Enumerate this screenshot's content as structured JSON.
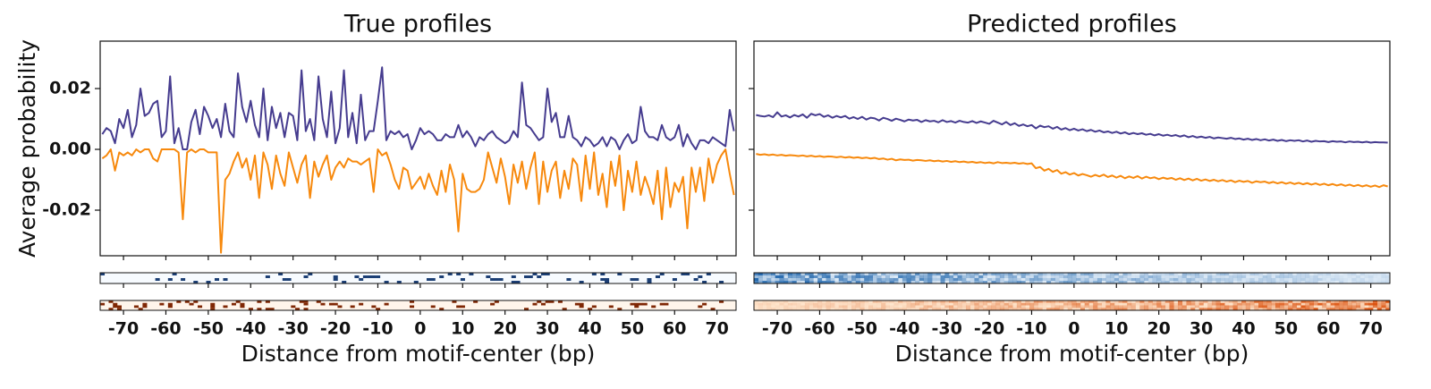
{
  "chart_data": [
    {
      "type": "line",
      "title": "True profiles",
      "ylabel": "Average probability",
      "xlabel": "Distance from motif-center (bp)",
      "xlim": [
        -75.5,
        74.5
      ],
      "xticks": [
        -70,
        -60,
        -50,
        -40,
        -30,
        -20,
        -10,
        0,
        10,
        20,
        30,
        40,
        50,
        60,
        70
      ],
      "ylim": [
        -0.035,
        0.0356
      ],
      "yticks": [
        0.02,
        {
          "value": 0,
          "label": "0.00"
        },
        -0.02
      ],
      "x": [
        -75,
        -74,
        -73,
        -72,
        -71,
        -70,
        -69,
        -68,
        -67,
        -66,
        -65,
        -64,
        -63,
        -62,
        -61,
        -60,
        -59,
        -58,
        -57,
        -56,
        -55,
        -54,
        -53,
        -52,
        -51,
        -50,
        -49,
        -48,
        -47,
        -46,
        -45,
        -44,
        -43,
        -42,
        -41,
        -40,
        -39,
        -38,
        -37,
        -36,
        -35,
        -34,
        -33,
        -32,
        -31,
        -30,
        -29,
        -28,
        -27,
        -26,
        -25,
        -24,
        -23,
        -22,
        -21,
        -20,
        -19,
        -18,
        -17,
        -16,
        -15,
        -14,
        -13,
        -12,
        -11,
        -10,
        -9,
        -8,
        -7,
        -6,
        -5,
        -4,
        -3,
        -2,
        -1,
        0,
        1,
        2,
        3,
        4,
        5,
        6,
        7,
        8,
        9,
        10,
        11,
        12,
        13,
        14,
        15,
        16,
        17,
        18,
        19,
        20,
        21,
        22,
        23,
        24,
        25,
        26,
        27,
        28,
        29,
        30,
        31,
        32,
        33,
        34,
        35,
        36,
        37,
        38,
        39,
        40,
        41,
        42,
        43,
        44,
        45,
        46,
        47,
        48,
        49,
        50,
        51,
        52,
        53,
        54,
        55,
        56,
        57,
        58,
        59,
        60,
        61,
        62,
        63,
        64,
        65,
        66,
        67,
        68,
        69,
        70,
        71,
        72,
        73,
        74
      ],
      "series": [
        {
          "color": "#463c8f",
          "values": [
            0.005,
            0.007,
            0.006,
            0.002,
            0.01,
            0.007,
            0.013,
            0.004,
            0.008,
            0.02,
            0.011,
            0.012,
            0.015,
            0.016,
            0.004,
            0.006,
            0.024,
            0.002,
            0.007,
            0.0,
            0.0,
            0.009,
            0.013,
            0.005,
            0.014,
            0.011,
            0.007,
            0.01,
            0.004,
            0.015,
            0.006,
            0.004,
            0.025,
            0.014,
            0.009,
            0.016,
            0.008,
            0.004,
            0.02,
            0.003,
            0.014,
            0.007,
            0.012,
            0.004,
            0.012,
            0.011,
            0.003,
            0.026,
            0.006,
            0.01,
            0.003,
            0.024,
            0.01,
            0.004,
            0.019,
            0.002,
            0.007,
            0.026,
            0.004,
            0.012,
            0.002,
            0.018,
            0.003,
            0.006,
            0.006,
            0.016,
            0.027,
            0.003,
            0.006,
            0.005,
            0.006,
            0.004,
            0.005,
            0.0,
            0.003,
            0.007,
            0.005,
            0.006,
            0.005,
            0.003,
            0.003,
            0.005,
            0.004,
            0.004,
            0.008,
            0.004,
            0.006,
            0.004,
            0.001,
            0.004,
            0.003,
            0.005,
            0.006,
            0.004,
            0.003,
            0.002,
            0.003,
            0.006,
            0.004,
            0.022,
            0.008,
            0.007,
            0.005,
            0.003,
            0.004,
            0.02,
            0.009,
            0.012,
            0.004,
            0.004,
            0.011,
            0.004,
            0.003,
            0.001,
            0.004,
            0.003,
            0.001,
            0.002,
            0.004,
            0.001,
            0.004,
            0.003,
            0.0,
            0.003,
            0.005,
            0.002,
            0.003,
            0.014,
            0.006,
            0.004,
            0.004,
            0.003,
            0.008,
            0.004,
            0.003,
            0.004,
            0.008,
            0.001,
            0.005,
            0.002,
            0.0,
            0.003,
            0.003,
            0.002,
            0.004,
            0.003,
            0.002,
            0.001,
            0.013,
            0.006
          ]
        },
        {
          "color": "#f7890d",
          "values": [
            -0.003,
            -0.002,
            0.0,
            -0.007,
            -0.001,
            -0.002,
            -0.001,
            -0.002,
            0.0,
            -0.001,
            0.0,
            0.0,
            -0.003,
            -0.004,
            0.0,
            0.0,
            0.0,
            0.0,
            -0.001,
            -0.023,
            -0.001,
            0.0,
            -0.001,
            0.0,
            0.0,
            -0.001,
            -0.001,
            -0.001,
            -0.034,
            -0.01,
            -0.008,
            -0.004,
            -0.001,
            -0.006,
            -0.003,
            -0.01,
            -0.002,
            -0.016,
            -0.001,
            -0.005,
            -0.013,
            -0.002,
            -0.008,
            -0.012,
            -0.001,
            -0.006,
            -0.011,
            -0.005,
            -0.002,
            -0.016,
            -0.004,
            -0.009,
            -0.005,
            -0.002,
            -0.01,
            -0.006,
            -0.004,
            -0.006,
            -0.003,
            -0.004,
            -0.004,
            -0.005,
            -0.004,
            -0.003,
            -0.014,
            0.0,
            -0.002,
            -0.001,
            -0.005,
            -0.01,
            -0.013,
            -0.006,
            -0.007,
            -0.013,
            -0.011,
            -0.009,
            -0.013,
            -0.008,
            -0.012,
            -0.015,
            -0.007,
            -0.014,
            -0.005,
            -0.01,
            -0.027,
            -0.008,
            -0.013,
            -0.014,
            -0.014,
            -0.013,
            -0.01,
            -0.001,
            -0.006,
            -0.011,
            -0.003,
            -0.009,
            -0.018,
            -0.005,
            -0.011,
            -0.004,
            -0.013,
            -0.006,
            -0.001,
            -0.018,
            -0.004,
            -0.014,
            -0.007,
            -0.004,
            -0.016,
            -0.007,
            -0.013,
            -0.003,
            -0.005,
            -0.017,
            -0.002,
            -0.013,
            -0.001,
            -0.015,
            -0.008,
            -0.019,
            -0.004,
            -0.012,
            -0.002,
            -0.02,
            -0.007,
            -0.014,
            -0.004,
            -0.015,
            -0.009,
            -0.013,
            -0.018,
            -0.007,
            -0.023,
            -0.006,
            -0.019,
            -0.011,
            -0.014,
            -0.009,
            -0.026,
            -0.006,
            -0.014,
            -0.006,
            -0.017,
            -0.003,
            -0.011,
            -0.005,
            -0.002,
            0.0,
            -0.008,
            -0.015
          ]
        }
      ]
    },
    {
      "type": "line",
      "title": "Predicted profiles",
      "xlabel": "Distance from motif-center (bp)",
      "show_ytick_labels": false,
      "xlim": [
        -75.5,
        74.5
      ],
      "xticks": [
        -70,
        -60,
        -50,
        -40,
        -30,
        -20,
        -10,
        0,
        10,
        20,
        30,
        40,
        50,
        60,
        70
      ],
      "ylim": [
        -0.035,
        0.0356
      ],
      "yticks": [
        0.02,
        0,
        -0.02
      ],
      "x": [
        -75,
        -74,
        -73,
        -72,
        -71,
        -70,
        -69,
        -68,
        -67,
        -66,
        -65,
        -64,
        -63,
        -62,
        -61,
        -60,
        -59,
        -58,
        -57,
        -56,
        -55,
        -54,
        -53,
        -52,
        -51,
        -50,
        -49,
        -48,
        -47,
        -46,
        -45,
        -44,
        -43,
        -42,
        -41,
        -40,
        -39,
        -38,
        -37,
        -36,
        -35,
        -34,
        -33,
        -32,
        -31,
        -30,
        -29,
        -28,
        -27,
        -26,
        -25,
        -24,
        -23,
        -22,
        -21,
        -20,
        -19,
        -18,
        -17,
        -16,
        -15,
        -14,
        -13,
        -12,
        -11,
        -10,
        -9,
        -8,
        -7,
        -6,
        -5,
        -4,
        -3,
        -2,
        -1,
        0,
        1,
        2,
        3,
        4,
        5,
        6,
        7,
        8,
        9,
        10,
        11,
        12,
        13,
        14,
        15,
        16,
        17,
        18,
        19,
        20,
        21,
        22,
        23,
        24,
        25,
        26,
        27,
        28,
        29,
        30,
        31,
        32,
        33,
        34,
        35,
        36,
        37,
        38,
        39,
        40,
        41,
        42,
        43,
        44,
        45,
        46,
        47,
        48,
        49,
        50,
        51,
        52,
        53,
        54,
        55,
        56,
        57,
        58,
        59,
        60,
        61,
        62,
        63,
        64,
        65,
        66,
        67,
        68,
        69,
        70,
        71,
        72,
        73,
        74
      ],
      "series": [
        {
          "color": "#463c8f",
          "values": [
            0.0113,
            0.011,
            0.0108,
            0.0112,
            0.0106,
            0.0122,
            0.0108,
            0.0112,
            0.0105,
            0.0113,
            0.0108,
            0.0115,
            0.0104,
            0.0117,
            0.0112,
            0.0116,
            0.0107,
            0.0112,
            0.0104,
            0.011,
            0.0105,
            0.011,
            0.0101,
            0.0106,
            0.01,
            0.0107,
            0.0098,
            0.0104,
            0.0102,
            0.0095,
            0.0104,
            0.01,
            0.0094,
            0.0101,
            0.0097,
            0.0092,
            0.0098,
            0.0095,
            0.0097,
            0.009,
            0.0096,
            0.0092,
            0.0094,
            0.0089,
            0.0096,
            0.009,
            0.0093,
            0.0088,
            0.0094,
            0.009,
            0.0088,
            0.0093,
            0.0087,
            0.0092,
            0.0088,
            0.0084,
            0.0094,
            0.0088,
            0.0082,
            0.009,
            0.008,
            0.0086,
            0.0077,
            0.0082,
            0.0076,
            0.008,
            0.0069,
            0.0078,
            0.0073,
            0.0076,
            0.0068,
            0.0074,
            0.0065,
            0.007,
            0.0063,
            0.0068,
            0.0062,
            0.0066,
            0.006,
            0.0064,
            0.0058,
            0.0062,
            0.0056,
            0.0059,
            0.0054,
            0.0058,
            0.0052,
            0.0056,
            0.005,
            0.0054,
            0.005,
            0.0053,
            0.0048,
            0.0051,
            0.0046,
            0.005,
            0.0045,
            0.0048,
            0.0044,
            0.0047,
            0.0042,
            0.0046,
            0.004,
            0.0044,
            0.0039,
            0.0042,
            0.0038,
            0.0041,
            0.0036,
            0.0039,
            0.0037,
            0.0035,
            0.0038,
            0.0034,
            0.0036,
            0.0032,
            0.0035,
            0.0031,
            0.0034,
            0.003,
            0.0033,
            0.0029,
            0.0032,
            0.0028,
            0.0031,
            0.0027,
            0.003,
            0.0028,
            0.003,
            0.0026,
            0.0029,
            0.0025,
            0.0028,
            0.0026,
            0.0027,
            0.0024,
            0.0027,
            0.0025,
            0.0026,
            0.0023,
            0.0026,
            0.0024,
            0.0025,
            0.0023,
            0.0025,
            0.0022,
            0.0024,
            0.0023,
            0.0023,
            0.0022
          ]
        },
        {
          "color": "#f7890d",
          "values": [
            -0.0015,
            -0.0018,
            -0.0016,
            -0.0019,
            -0.0017,
            -0.002,
            -0.0018,
            -0.0021,
            -0.0019,
            -0.002,
            -0.0022,
            -0.002,
            -0.0023,
            -0.0021,
            -0.0024,
            -0.0022,
            -0.0025,
            -0.0023,
            -0.0024,
            -0.0026,
            -0.0024,
            -0.0027,
            -0.0025,
            -0.0028,
            -0.0026,
            -0.0029,
            -0.0027,
            -0.003,
            -0.0028,
            -0.0032,
            -0.003,
            -0.0034,
            -0.0031,
            -0.0036,
            -0.0033,
            -0.0035,
            -0.0034,
            -0.0037,
            -0.0035,
            -0.0036,
            -0.0038,
            -0.0036,
            -0.0039,
            -0.0037,
            -0.004,
            -0.0038,
            -0.0041,
            -0.0039,
            -0.0042,
            -0.004,
            -0.0043,
            -0.0041,
            -0.0044,
            -0.0042,
            -0.0045,
            -0.0043,
            -0.0046,
            -0.0042,
            -0.0045,
            -0.0044,
            -0.0046,
            -0.0044,
            -0.0047,
            -0.0045,
            -0.0048,
            -0.0046,
            -0.0062,
            -0.0058,
            -0.007,
            -0.0064,
            -0.0074,
            -0.0068,
            -0.008,
            -0.0075,
            -0.0083,
            -0.0078,
            -0.0086,
            -0.0081,
            -0.0085,
            -0.009,
            -0.0084,
            -0.0089,
            -0.0083,
            -0.0091,
            -0.0086,
            -0.0093,
            -0.0087,
            -0.0095,
            -0.0089,
            -0.0094,
            -0.0088,
            -0.0096,
            -0.009,
            -0.0095,
            -0.0092,
            -0.0098,
            -0.0093,
            -0.0097,
            -0.0094,
            -0.01,
            -0.0095,
            -0.0101,
            -0.0096,
            -0.0102,
            -0.0097,
            -0.0103,
            -0.0099,
            -0.0104,
            -0.01,
            -0.0105,
            -0.0101,
            -0.0106,
            -0.0102,
            -0.0108,
            -0.0103,
            -0.0107,
            -0.0104,
            -0.011,
            -0.0105,
            -0.0108,
            -0.0106,
            -0.0111,
            -0.0107,
            -0.0112,
            -0.0108,
            -0.0113,
            -0.0109,
            -0.0114,
            -0.011,
            -0.0115,
            -0.0111,
            -0.0116,
            -0.0112,
            -0.0117,
            -0.0113,
            -0.0118,
            -0.0114,
            -0.0119,
            -0.0115,
            -0.012,
            -0.0116,
            -0.0121,
            -0.0117,
            -0.0122,
            -0.0118,
            -0.0123,
            -0.0119,
            -0.0124,
            -0.0118,
            -0.0122
          ]
        }
      ]
    }
  ]
}
